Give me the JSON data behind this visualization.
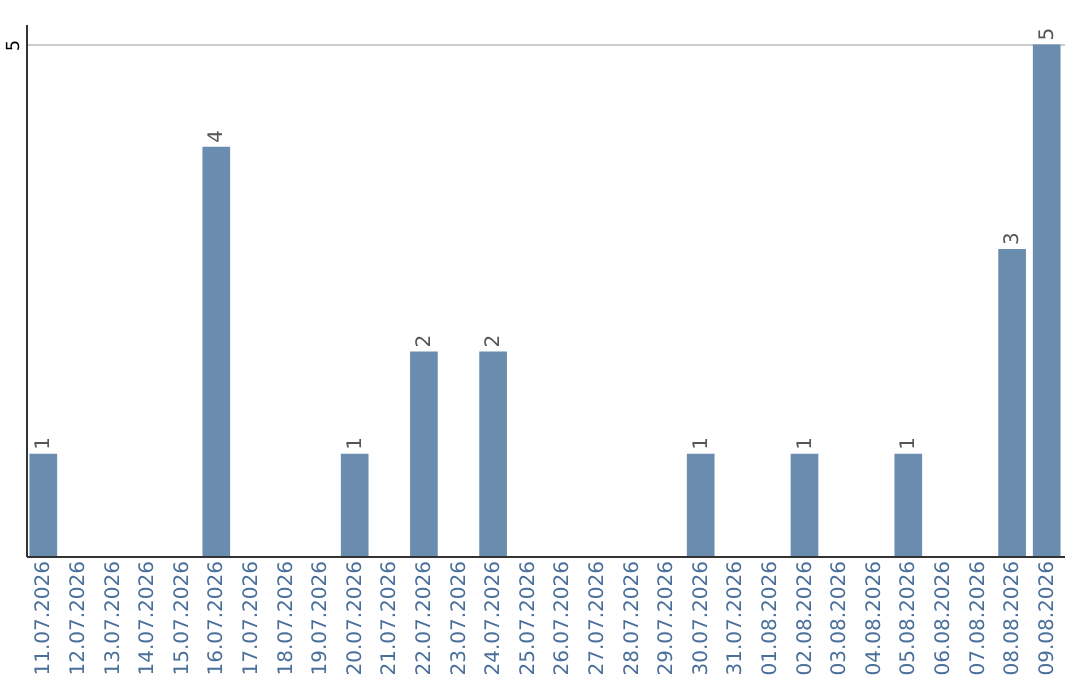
{
  "chart_data": {
    "type": "bar",
    "categories": [
      "11.07.2026",
      "12.07.2026",
      "13.07.2026",
      "14.07.2026",
      "15.07.2026",
      "16.07.2026",
      "17.07.2026",
      "18.07.2026",
      "19.07.2026",
      "20.07.2026",
      "21.07.2026",
      "22.07.2026",
      "23.07.2026",
      "24.07.2026",
      "25.07.2026",
      "26.07.2026",
      "27.07.2026",
      "28.07.2026",
      "29.07.2026",
      "30.07.2026",
      "31.07.2026",
      "01.08.2026",
      "02.08.2026",
      "03.08.2026",
      "04.08.2026",
      "05.08.2026",
      "06.08.2026",
      "07.08.2026",
      "08.08.2026",
      "09.08.2026"
    ],
    "values": [
      1,
      0,
      0,
      0,
      0,
      4,
      0,
      0,
      0,
      1,
      0,
      2,
      0,
      2,
      0,
      0,
      0,
      0,
      0,
      1,
      0,
      0,
      1,
      0,
      0,
      1,
      0,
      0,
      3,
      5
    ],
    "value_labels": [
      "1",
      null,
      null,
      null,
      null,
      "4",
      null,
      null,
      null,
      "1",
      null,
      "2",
      null,
      "2",
      null,
      null,
      null,
      null,
      null,
      "1",
      null,
      null,
      "1",
      null,
      null,
      "1",
      null,
      null,
      "3",
      "5"
    ],
    "color": "#6a8caf",
    "ylim": [
      0,
      5.2
    ],
    "yticks": [
      5
    ],
    "grid": "y"
  }
}
